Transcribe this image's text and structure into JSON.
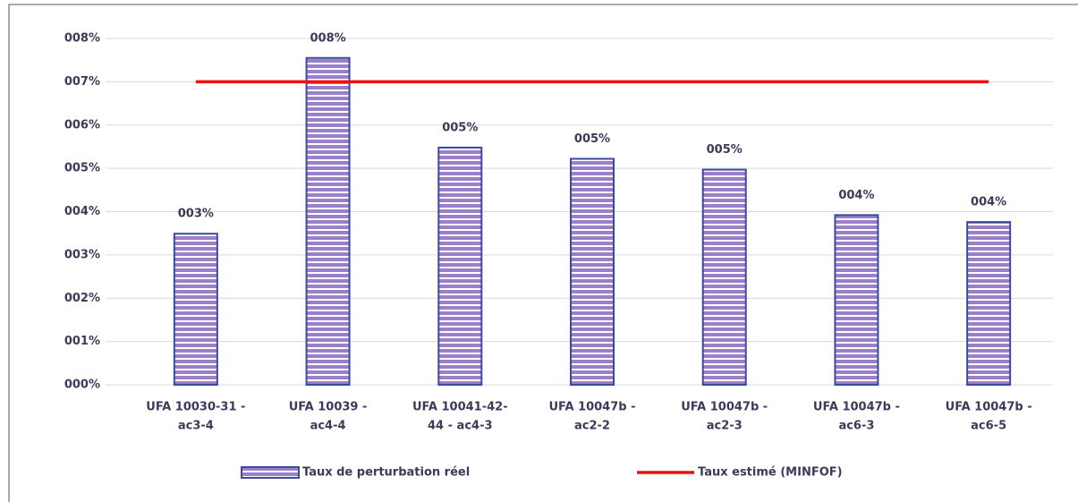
{
  "chart_data": {
    "type": "bar",
    "categories": [
      [
        "UFA 10030-31 -",
        "ac3-4"
      ],
      [
        "UFA 10039 -",
        "ac4-4"
      ],
      [
        "UFA 10041-42-",
        "44 - ac4-3"
      ],
      [
        "UFA 10047b -",
        "ac2-2"
      ],
      [
        "UFA 10047b -",
        "ac2-3"
      ],
      [
        "UFA 10047b -",
        "ac6-3"
      ],
      [
        "UFA 10047b -",
        "ac6-5"
      ]
    ],
    "series": [
      {
        "name": "Taux de perturbation réel",
        "type": "bar",
        "color": "#9b7fc9",
        "edge": "#3b4aa0",
        "values": [
          3.49,
          7.55,
          5.48,
          5.22,
          4.97,
          3.92,
          3.76
        ],
        "value_labels": [
          "003%",
          "008%",
          "005%",
          "005%",
          "005%",
          "004%",
          "004%"
        ]
      },
      {
        "name": "Taux estimé (MINFOF)",
        "type": "line",
        "color": "#ee1111",
        "values": [
          7,
          7,
          7,
          7,
          7,
          7,
          7
        ]
      }
    ],
    "ylim": [
      0,
      8
    ],
    "yticks": [
      {
        "value": 0,
        "label": "000%"
      },
      {
        "value": 1,
        "label": "001%"
      },
      {
        "value": 2,
        "label": "002%"
      },
      {
        "value": 3,
        "label": "003%"
      },
      {
        "value": 4,
        "label": "004%"
      },
      {
        "value": 5,
        "label": "005%"
      },
      {
        "value": 6,
        "label": "006%"
      },
      {
        "value": 7,
        "label": "007%"
      },
      {
        "value": 8,
        "label": "008%"
      }
    ],
    "grid": true,
    "legend": "bottom"
  }
}
